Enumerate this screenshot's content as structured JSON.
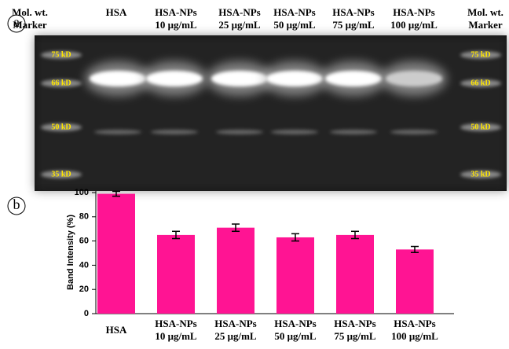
{
  "panel_a": {
    "label": "a",
    "lanes": [
      [
        "Mol. wt.",
        "Marker"
      ],
      [
        "HSA"
      ],
      [
        "HSA-NPs",
        "10 μg/mL"
      ],
      [
        "HSA-NPs",
        "25 μg/mL"
      ],
      [
        "HSA-NPs",
        "50 μg/mL"
      ],
      [
        "HSA-NPs",
        "75 μg/mL"
      ],
      [
        "HSA-NPs",
        "100 μg/mL"
      ],
      [
        "Mol. wt.",
        "Marker"
      ]
    ],
    "ladder_left": [
      "75 kD",
      "66 kD",
      "50 kD",
      "35 kD"
    ],
    "ladder_right": [
      "75 kD",
      "66 kD",
      "50 kD",
      "35 kD"
    ]
  },
  "chart_data": {
    "type": "bar",
    "panel_label": "b",
    "y_label": "Band Intensity (%)",
    "categories": [
      [
        "HSA"
      ],
      [
        "HSA-NPs",
        "10 μg/mL"
      ],
      [
        "HSA-NPs",
        "25 μg/mL"
      ],
      [
        "HSA-NPs",
        "50 μg/mL"
      ],
      [
        "HSA-NPs",
        "75 μg/mL"
      ],
      [
        "HSA-NPs",
        "100 μg/mL"
      ]
    ],
    "values": [
      99,
      65,
      71,
      63,
      65,
      53
    ],
    "errors": [
      2,
      3,
      3,
      3,
      3,
      2.5
    ],
    "color": "#ff1493",
    "ylim": [
      0,
      100
    ],
    "yticks": [
      0,
      20,
      40,
      60,
      80,
      100
    ]
  }
}
